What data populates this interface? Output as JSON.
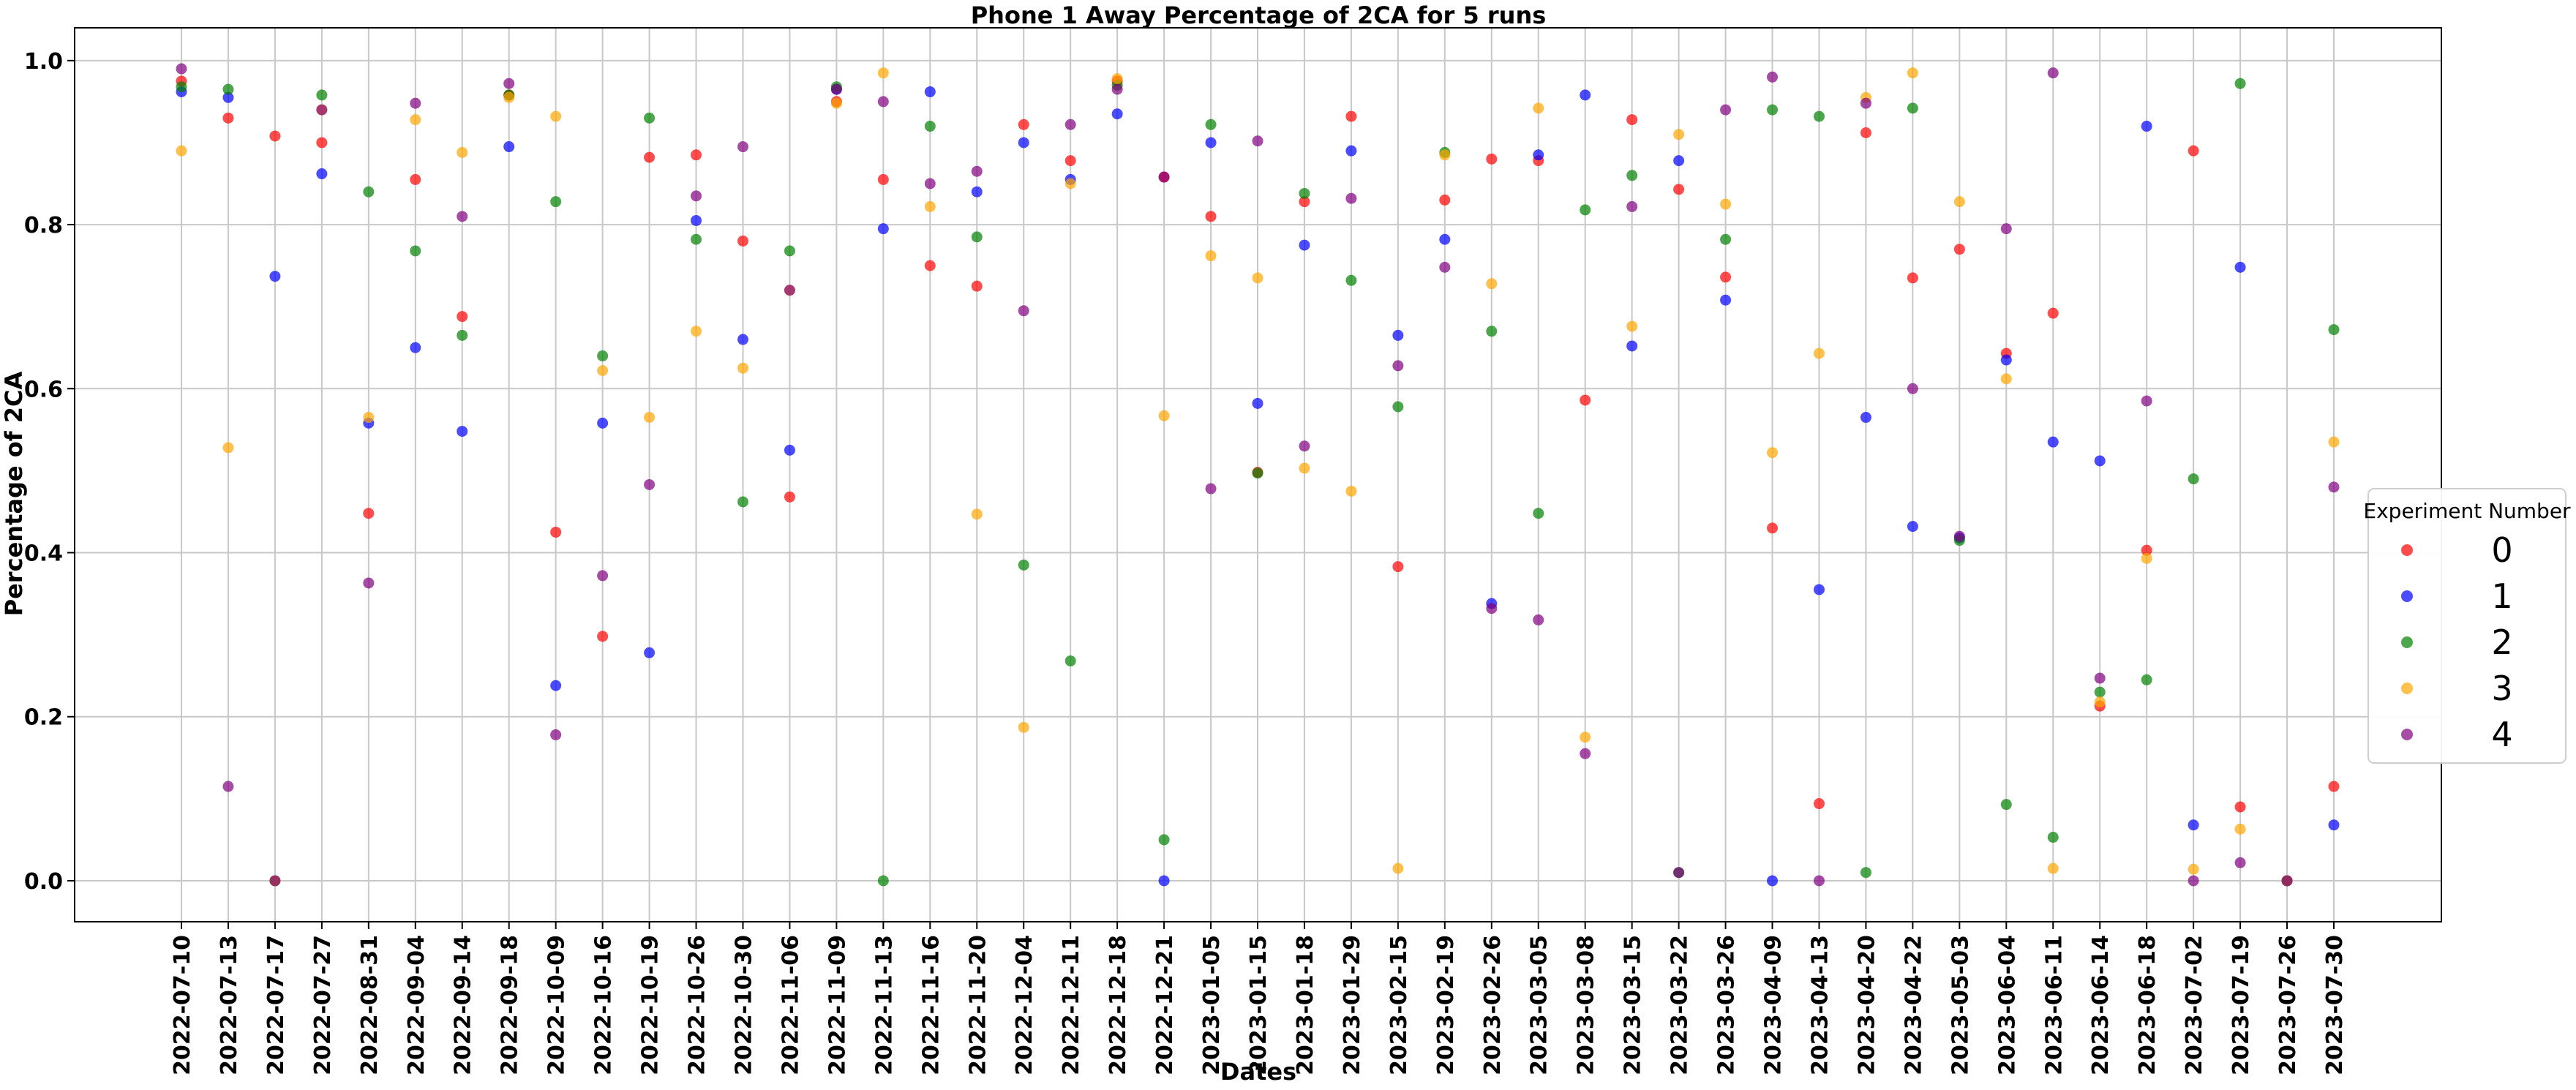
{
  "chart_data": {
    "type": "scatter",
    "title": "Phone 1 Away Percentage of 2CA for 5 runs",
    "xlabel": "Dates",
    "ylabel": "Percentage of 2CA",
    "ylim": [
      -0.05,
      1.04
    ],
    "yticks": [
      "0.0",
      "0.2",
      "0.4",
      "0.6",
      "0.8",
      "1.0"
    ],
    "grid": true,
    "legend": {
      "title": "Experiment Number",
      "placement": "right"
    },
    "categories": [
      "2022-07-10",
      "2022-07-13",
      "2022-07-17",
      "2022-07-27",
      "2022-08-31",
      "2022-09-04",
      "2022-09-14",
      "2022-09-18",
      "2022-10-09",
      "2022-10-16",
      "2022-10-19",
      "2022-10-26",
      "2022-10-30",
      "2022-11-06",
      "2022-11-09",
      "2022-11-13",
      "2022-11-16",
      "2022-11-20",
      "2022-12-04",
      "2022-12-11",
      "2022-12-18",
      "2022-12-21",
      "2023-01-05",
      "2023-01-15",
      "2023-01-18",
      "2023-01-29",
      "2023-02-15",
      "2023-02-19",
      "2023-02-26",
      "2023-03-05",
      "2023-03-08",
      "2023-03-15",
      "2023-03-22",
      "2023-03-26",
      "2023-04-09",
      "2023-04-13",
      "2023-04-20",
      "2023-04-22",
      "2023-05-03",
      "2023-06-04",
      "2023-06-11",
      "2023-06-14",
      "2023-06-18",
      "2023-07-02",
      "2023-07-19",
      "2023-07-26",
      "2023-07-30"
    ],
    "series": [
      {
        "name": "0",
        "color": "#ff0000",
        "values": [
          0.975,
          0.93,
          0.908,
          0.9,
          0.448,
          0.855,
          0.688,
          0.958,
          0.425,
          0.298,
          0.882,
          0.885,
          0.78,
          0.468,
          0.95,
          0.855,
          0.75,
          0.725,
          0.922,
          0.878,
          0.975,
          0.858,
          0.81,
          0.498,
          0.828,
          0.932,
          0.383,
          0.83,
          0.88,
          0.878,
          0.586,
          0.928,
          0.843,
          0.736,
          0.43,
          0.094,
          0.912,
          0.735,
          0.77,
          0.643,
          0.692,
          0.213,
          0.403,
          0.89,
          0.09,
          0.0,
          0.115
        ]
      },
      {
        "name": "1",
        "color": "#0000ff",
        "values": [
          0.962,
          0.955,
          0.737,
          0.862,
          0.558,
          0.65,
          0.548,
          0.895,
          0.238,
          0.558,
          0.278,
          0.805,
          0.66,
          0.525,
          0.965,
          0.795,
          0.962,
          0.84,
          0.9,
          0.855,
          0.935,
          0.0,
          0.9,
          0.582,
          0.775,
          0.89,
          0.665,
          0.782,
          0.338,
          0.885,
          0.958,
          0.652,
          0.878,
          0.708,
          0.0,
          0.355,
          0.565,
          0.432,
          0.418,
          0.635,
          0.535,
          0.512,
          0.92,
          0.068,
          0.748,
          0.0,
          0.068
        ]
      },
      {
        "name": "2",
        "color": "#008000",
        "values": [
          0.968,
          0.965,
          0.0,
          0.958,
          0.84,
          0.768,
          0.665,
          0.958,
          0.828,
          0.64,
          0.93,
          0.782,
          0.462,
          0.768,
          0.968,
          0.0,
          0.92,
          0.785,
          0.385,
          0.268,
          0.97,
          0.05,
          0.922,
          0.497,
          0.838,
          0.732,
          0.578,
          0.888,
          0.67,
          0.448,
          0.818,
          0.86,
          0.01,
          0.782,
          0.94,
          0.932,
          0.01,
          0.942,
          0.415,
          0.093,
          0.053,
          0.23,
          0.245,
          0.49,
          0.972,
          0.0,
          0.672
        ]
      },
      {
        "name": "3",
        "color": "#ffa500",
        "values": [
          0.89,
          0.528,
          0.0,
          0.94,
          0.565,
          0.928,
          0.888,
          0.955,
          0.932,
          0.622,
          0.565,
          0.67,
          0.625,
          0.72,
          0.948,
          0.985,
          0.822,
          0.447,
          0.187,
          0.85,
          0.978,
          0.567,
          0.762,
          0.735,
          0.503,
          0.475,
          0.015,
          0.885,
          0.728,
          0.942,
          0.175,
          0.676,
          0.91,
          0.825,
          0.522,
          0.643,
          0.955,
          0.985,
          0.828,
          0.612,
          0.015,
          0.218,
          0.393,
          0.014,
          0.063,
          0.0,
          0.535
        ]
      },
      {
        "name": "4",
        "color": "#800080",
        "values": [
          0.99,
          0.115,
          0.0,
          0.94,
          0.363,
          0.948,
          0.81,
          0.972,
          0.178,
          0.372,
          0.483,
          0.835,
          0.895,
          0.72,
          0.965,
          0.95,
          0.85,
          0.865,
          0.695,
          0.922,
          0.965,
          0.858,
          0.478,
          0.902,
          0.53,
          0.832,
          0.628,
          0.748,
          0.332,
          0.318,
          0.155,
          0.822,
          0.01,
          0.94,
          0.98,
          0.0,
          0.948,
          0.6,
          0.42,
          0.795,
          0.985,
          0.247,
          0.585,
          0.0,
          0.022,
          0.0,
          0.48
        ]
      }
    ]
  }
}
